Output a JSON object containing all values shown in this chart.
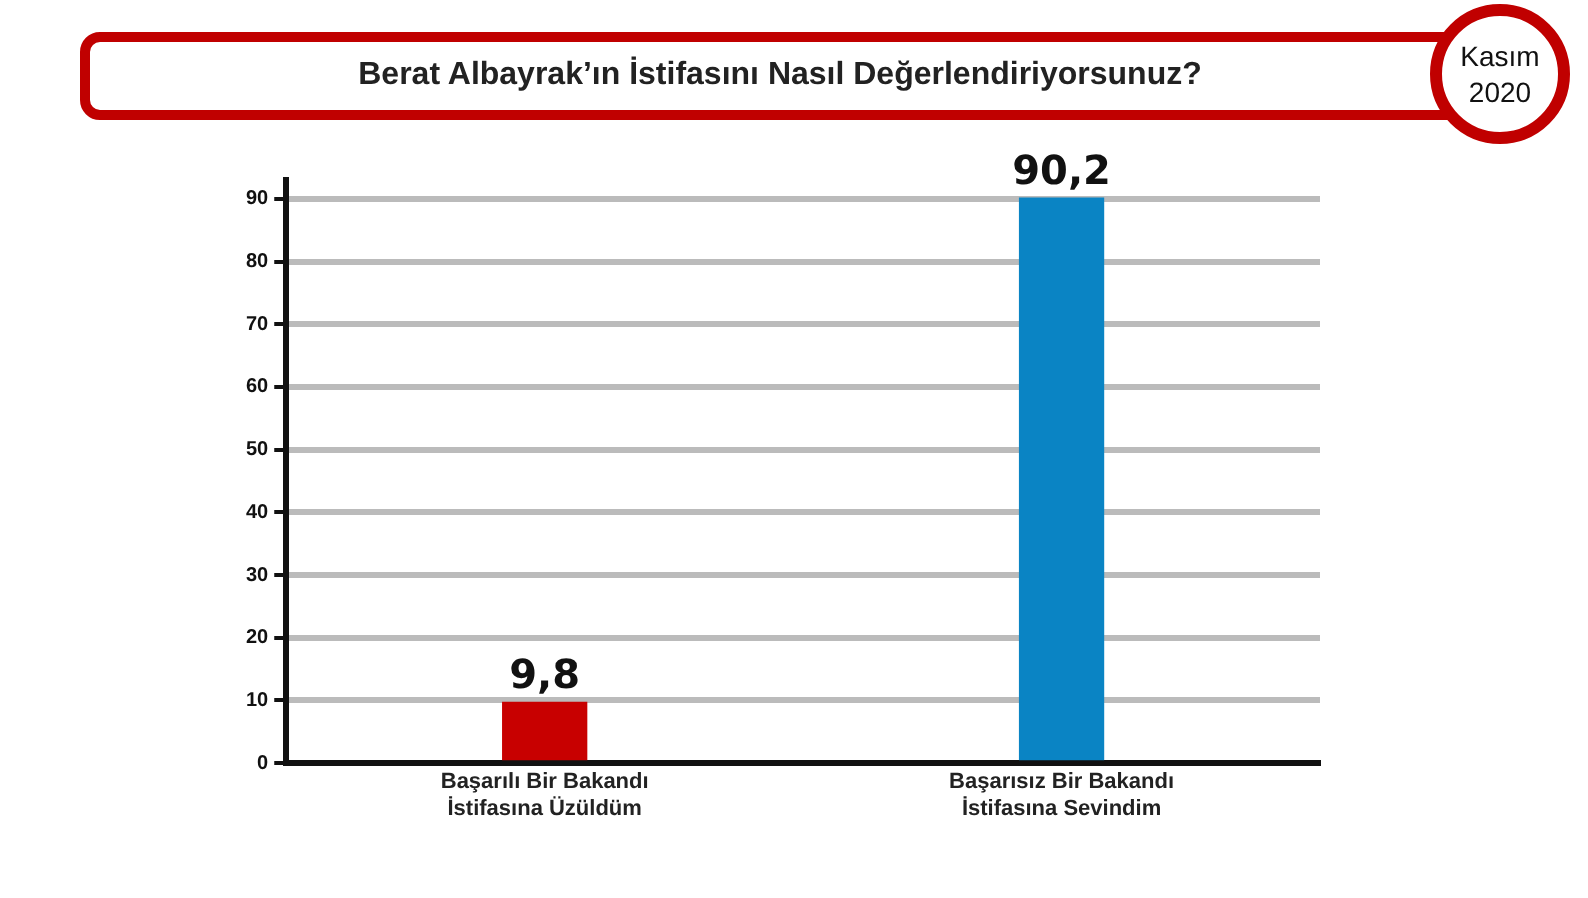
{
  "chart_data": {
    "type": "bar",
    "title": "Berat Albayrak’ın İstifasını Nasıl Değerlendiriyorsunuz?",
    "annotations": [
      "Kasım 2020"
    ],
    "categories": [
      "Başarılı Bir Bakandı\nİstifasına Üzüldüm",
      "Başarısız Bir Bakandı\nİstifasına Sevindim"
    ],
    "values": [
      9.8,
      90.2
    ],
    "colors": [
      "#c80000",
      "#0a84c4"
    ],
    "value_labels": [
      "9,8",
      "90,2"
    ],
    "ylim": [
      0,
      93
    ],
    "yticks": [
      0,
      10,
      20,
      30,
      40,
      50,
      60,
      70,
      80,
      90
    ],
    "grid": "y",
    "legend": false
  }
}
